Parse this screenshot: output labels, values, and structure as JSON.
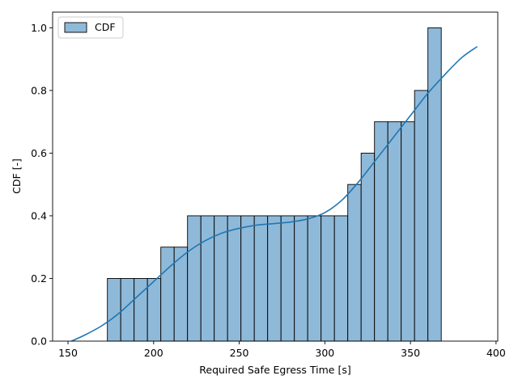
{
  "chart_data": {
    "type": "bar",
    "title": "",
    "xlabel": "Required Safe Egress Time [s]",
    "ylabel": "CDF [-]",
    "xlim": [
      141,
      401
    ],
    "ylim": [
      0,
      1.05
    ],
    "xticks": [
      150,
      200,
      250,
      300,
      350,
      400
    ],
    "yticks": [
      0.0,
      0.2,
      0.4,
      0.6,
      0.8,
      1.0
    ],
    "grid": false,
    "legend": {
      "position": "top-left",
      "entries": [
        "CDF"
      ]
    },
    "bar_color": "#8fb9d9",
    "bar_edge_color": "#000000",
    "line_color": "#1f77b4",
    "bins": {
      "x_start": [
        173.0,
        180.8,
        188.6,
        196.4,
        204.2,
        212.0,
        219.8,
        227.6,
        235.4,
        243.2,
        251.0,
        258.8,
        266.6,
        274.4,
        282.2,
        290.0,
        297.8,
        305.6,
        313.4,
        321.2,
        329.0,
        336.8,
        344.6,
        352.4,
        360.2
      ],
      "width": 7.8,
      "values": [
        0.2,
        0.2,
        0.2,
        0.2,
        0.3,
        0.3,
        0.4,
        0.4,
        0.4,
        0.4,
        0.4,
        0.4,
        0.4,
        0.4,
        0.4,
        0.4,
        0.4,
        0.4,
        0.5,
        0.6,
        0.7,
        0.7,
        0.7,
        0.8,
        1.0
      ]
    },
    "kde_curve": {
      "x": [
        152,
        160,
        170,
        180,
        190,
        200,
        210,
        220,
        230,
        240,
        250,
        260,
        270,
        280,
        290,
        300,
        310,
        320,
        330,
        340,
        350,
        360,
        370,
        380,
        389
      ],
      "y": [
        0.0,
        0.02,
        0.05,
        0.09,
        0.14,
        0.19,
        0.24,
        0.285,
        0.32,
        0.345,
        0.36,
        0.37,
        0.375,
        0.38,
        0.39,
        0.41,
        0.45,
        0.51,
        0.58,
        0.65,
        0.72,
        0.79,
        0.85,
        0.905,
        0.94
      ]
    }
  }
}
